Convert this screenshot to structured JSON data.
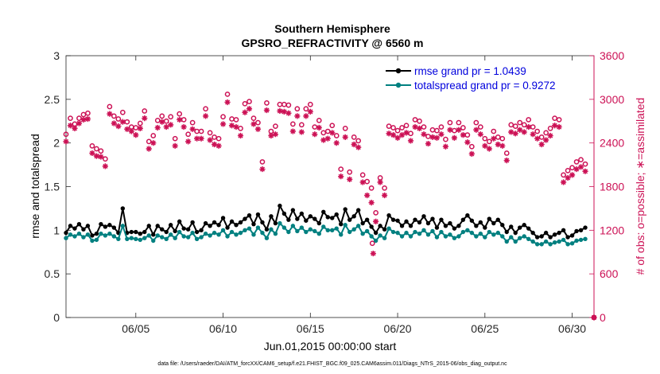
{
  "chart_data": {
    "type": "line",
    "title": [
      "Southern Hemisphere",
      "GPSRO_REFRACTIVITY @ 6560 m"
    ],
    "xlabel": "Jun.01,2015 00:00:00 start",
    "ylabel_left": "rmse and totalspread",
    "ylabel_right": "# of obs: o=possible; ∗=assimilated",
    "footnote": "data file: /Users/raeder/DAI/ATM_forcXX/CAM6_setup/f.e21.FHIST_BGC.f09_025.CAM6assim.011/Diags_NTrS_2015-06/obs_diag_output.nc",
    "xlim": [
      1,
      31.25
    ],
    "xticks": [
      5,
      10,
      15,
      20,
      25,
      30
    ],
    "xticklabels": [
      "06/05",
      "06/10",
      "06/15",
      "06/20",
      "06/25",
      "06/30"
    ],
    "ylim_left": [
      0,
      3
    ],
    "yticks_left": [
      "0",
      "0.5",
      "1",
      "1.5",
      "2",
      "2.5",
      "3"
    ],
    "ylim_right": [
      0,
      3600
    ],
    "yticks_right": [
      "0",
      "600",
      "1200",
      "1800",
      "2400",
      "3000",
      "3600"
    ],
    "colors": {
      "rmse": "#000000",
      "spread": "#008080",
      "obs": "#cc1155"
    },
    "legend": {
      "position": "top-right",
      "entries": [
        "rmse grand pr = 1.0439",
        "totalspread grand pr = 0.9272"
      ]
    },
    "series": [
      {
        "name": "rmse",
        "x": [
          1.0,
          1.25,
          1.5,
          1.75,
          2.0,
          2.25,
          2.5,
          2.75,
          3.0,
          3.25,
          3.5,
          3.75,
          4.0,
          4.25,
          4.5,
          4.75,
          5.0,
          5.25,
          5.5,
          5.75,
          6.0,
          6.25,
          6.5,
          6.75,
          7.0,
          7.25,
          7.5,
          7.75,
          8.0,
          8.25,
          8.5,
          8.75,
          9.0,
          9.25,
          9.5,
          9.75,
          10.0,
          10.25,
          10.5,
          10.75,
          11.0,
          11.25,
          11.5,
          11.75,
          12.0,
          12.25,
          12.5,
          12.75,
          13.0,
          13.25,
          13.5,
          13.75,
          14.0,
          14.25,
          14.5,
          14.75,
          15.0,
          15.25,
          15.5,
          15.75,
          16.0,
          16.25,
          16.5,
          16.75,
          17.0,
          17.25,
          17.5,
          17.75,
          18.0,
          18.25,
          18.5,
          18.75,
          19.0,
          19.25,
          19.5,
          19.75,
          20.0,
          20.25,
          20.5,
          20.75,
          21.0,
          21.25,
          21.5,
          21.75,
          22.0,
          22.25,
          22.5,
          22.75,
          23.0,
          23.25,
          23.5,
          23.75,
          24.0,
          24.25,
          24.5,
          24.75,
          25.0,
          25.25,
          25.5,
          25.75,
          26.0,
          26.25,
          26.5,
          26.75,
          27.0,
          27.25,
          27.5,
          27.75,
          28.0,
          28.25,
          28.5,
          28.75,
          29.0,
          29.25,
          29.5,
          29.75,
          30.0,
          30.25,
          30.5,
          30.75
        ],
        "values": [
          0.97,
          1.05,
          1.02,
          1.07,
          1.01,
          1.05,
          0.94,
          0.96,
          1.07,
          1.04,
          1.06,
          1.03,
          0.97,
          1.25,
          0.97,
          0.98,
          0.98,
          0.96,
          0.98,
          1.05,
          0.95,
          1.05,
          1.01,
          0.98,
          1.06,
          0.99,
          1.1,
          1.02,
          1.01,
          1.09,
          0.98,
          1.0,
          1.08,
          1.05,
          1.09,
          1.06,
          1.14,
          1.03,
          1.1,
          1.06,
          1.09,
          1.13,
          1.17,
          1.07,
          1.18,
          1.09,
          1.01,
          1.16,
          1.08,
          1.28,
          1.19,
          1.12,
          1.23,
          1.13,
          1.19,
          1.11,
          1.16,
          1.13,
          1.08,
          1.21,
          1.15,
          1.14,
          1.18,
          1.07,
          1.24,
          1.12,
          1.16,
          1.23,
          1.08,
          1.12,
          1.04,
          0.97,
          1.05,
          1.01,
          1.17,
          1.12,
          1.11,
          1.05,
          1.1,
          1.05,
          1.12,
          1.09,
          1.16,
          1.08,
          1.13,
          1.03,
          1.12,
          1.05,
          1.08,
          1.02,
          1.05,
          1.12,
          1.17,
          1.11,
          1.05,
          1.09,
          1.03,
          1.13,
          1.08,
          1.12,
          1.06,
          0.98,
          1.04,
          0.97,
          1.03,
          1.06,
          1.02,
          0.97,
          0.92,
          0.93,
          0.97,
          0.92,
          0.95,
          0.97,
          1.0,
          0.92,
          0.94,
          0.99,
          1.0,
          1.03
        ]
      },
      {
        "name": "totalspread",
        "x": [
          1.0,
          1.25,
          1.5,
          1.75,
          2.0,
          2.25,
          2.5,
          2.75,
          3.0,
          3.25,
          3.5,
          3.75,
          4.0,
          4.25,
          4.5,
          4.75,
          5.0,
          5.25,
          5.5,
          5.75,
          6.0,
          6.25,
          6.5,
          6.75,
          7.0,
          7.25,
          7.5,
          7.75,
          8.0,
          8.25,
          8.5,
          8.75,
          9.0,
          9.25,
          9.5,
          9.75,
          10.0,
          10.25,
          10.5,
          10.75,
          11.0,
          11.25,
          11.5,
          11.75,
          12.0,
          12.25,
          12.5,
          12.75,
          13.0,
          13.25,
          13.5,
          13.75,
          14.0,
          14.25,
          14.5,
          14.75,
          15.0,
          15.25,
          15.5,
          15.75,
          16.0,
          16.25,
          16.5,
          16.75,
          17.0,
          17.25,
          17.5,
          17.75,
          18.0,
          18.25,
          18.5,
          18.75,
          19.0,
          19.25,
          19.5,
          19.75,
          20.0,
          20.25,
          20.5,
          20.75,
          21.0,
          21.25,
          21.5,
          21.75,
          22.0,
          22.25,
          22.5,
          22.75,
          23.0,
          23.25,
          23.5,
          23.75,
          24.0,
          24.25,
          24.5,
          24.75,
          25.0,
          25.25,
          25.5,
          25.75,
          26.0,
          26.25,
          26.5,
          26.75,
          27.0,
          27.25,
          27.5,
          27.75,
          28.0,
          28.25,
          28.5,
          28.75,
          29.0,
          29.25,
          29.5,
          29.75,
          30.0,
          30.25,
          30.5,
          30.75
        ],
        "values": [
          0.91,
          0.95,
          0.93,
          0.96,
          0.92,
          0.95,
          0.88,
          0.89,
          0.96,
          0.94,
          0.96,
          0.93,
          0.9,
          1.05,
          0.9,
          0.91,
          0.9,
          0.89,
          0.91,
          0.94,
          0.88,
          0.94,
          0.92,
          0.9,
          0.95,
          0.91,
          0.98,
          0.93,
          0.92,
          0.97,
          0.9,
          0.92,
          0.96,
          0.94,
          0.97,
          0.95,
          1.0,
          0.93,
          0.98,
          0.95,
          0.97,
          1.0,
          1.02,
          0.95,
          1.03,
          0.97,
          0.91,
          1.01,
          0.96,
          1.08,
          1.03,
          0.98,
          1.05,
          0.99,
          1.03,
          0.98,
          1.01,
          0.99,
          0.96,
          1.04,
          1.0,
          1.0,
          1.02,
          0.95,
          1.06,
          0.98,
          1.01,
          1.05,
          0.96,
          0.99,
          0.93,
          0.88,
          0.94,
          0.91,
          1.02,
          0.98,
          0.97,
          0.93,
          0.97,
          0.93,
          0.98,
          0.96,
          1.0,
          0.95,
          0.99,
          0.92,
          0.98,
          0.93,
          0.95,
          0.91,
          0.93,
          0.98,
          1.0,
          0.97,
          0.93,
          0.96,
          0.92,
          0.98,
          0.95,
          0.97,
          0.93,
          0.87,
          0.92,
          0.87,
          0.91,
          0.93,
          0.9,
          0.87,
          0.84,
          0.84,
          0.87,
          0.84,
          0.86,
          0.87,
          0.89,
          0.84,
          0.85,
          0.88,
          0.89,
          0.9
        ]
      },
      {
        "name": "obs_possible",
        "axis": "right",
        "marker": "o",
        "x": [
          1.0,
          1.25,
          1.5,
          1.75,
          2.0,
          2.25,
          2.5,
          2.75,
          3.0,
          3.25,
          3.5,
          3.75,
          4.0,
          4.25,
          4.5,
          4.75,
          5.0,
          5.25,
          5.5,
          5.75,
          6.0,
          6.25,
          6.5,
          6.75,
          7.0,
          7.25,
          7.5,
          7.75,
          8.0,
          8.25,
          8.5,
          8.75,
          9.0,
          9.25,
          9.5,
          9.75,
          10.0,
          10.25,
          10.5,
          10.75,
          11.0,
          11.25,
          11.5,
          11.75,
          12.0,
          12.25,
          12.5,
          12.75,
          13.0,
          13.25,
          13.5,
          13.75,
          14.0,
          14.25,
          14.5,
          14.75,
          15.0,
          15.25,
          15.5,
          15.75,
          16.0,
          16.25,
          16.5,
          16.75,
          17.0,
          17.25,
          17.5,
          17.75,
          18.0,
          18.25,
          18.5,
          18.75,
          19.0,
          19.25,
          19.5,
          19.75,
          20.0,
          20.25,
          20.5,
          20.75,
          21.0,
          21.25,
          21.5,
          21.75,
          22.0,
          22.25,
          22.5,
          22.75,
          23.0,
          23.25,
          23.5,
          23.75,
          24.0,
          24.25,
          24.5,
          24.75,
          25.0,
          25.25,
          25.5,
          25.75,
          26.0,
          26.25,
          26.5,
          26.75,
          27.0,
          27.25,
          27.5,
          27.75,
          28.0,
          28.25,
          28.5,
          28.75,
          29.0,
          29.25,
          29.5,
          29.75,
          30.0,
          30.25,
          30.5,
          30.75
        ],
        "values": [
          2520,
          2740,
          2660,
          2740,
          2790,
          2810,
          2360,
          2320,
          2290,
          2180,
          2900,
          2770,
          2730,
          2820,
          2690,
          2620,
          2610,
          2670,
          2840,
          2420,
          2500,
          2710,
          2770,
          2700,
          2760,
          2460,
          2800,
          2720,
          2520,
          2680,
          2560,
          2560,
          2870,
          2540,
          2480,
          2460,
          2760,
          3070,
          2730,
          2720,
          2600,
          2940,
          2970,
          2740,
          2680,
          2140,
          2950,
          2560,
          2630,
          2930,
          2930,
          2920,
          2660,
          2870,
          2650,
          2870,
          2930,
          2620,
          2710,
          2540,
          2560,
          2640,
          2500,
          2040,
          2600,
          2000,
          2480,
          2430,
          1960,
          1870,
          1780,
          1440,
          1920,
          1780,
          2630,
          2610,
          2570,
          2610,
          2640,
          2530,
          2720,
          2700,
          2620,
          2490,
          2580,
          2570,
          2620,
          2450,
          2680,
          2570,
          2680,
          2610,
          2510,
          2350,
          2680,
          2620,
          2460,
          2420,
          2560,
          2480,
          2460,
          2260,
          2650,
          2630,
          2680,
          2650,
          2720,
          2620,
          2560,
          2480,
          2540,
          2600,
          2740,
          2720,
          1960,
          2020,
          2060,
          2140,
          2170,
          2110
        ]
      },
      {
        "name": "obs_assimilated",
        "axis": "right",
        "marker": "*",
        "x": [
          1.0,
          1.25,
          1.5,
          1.75,
          2.0,
          2.25,
          2.5,
          2.75,
          3.0,
          3.25,
          3.5,
          3.75,
          4.0,
          4.25,
          4.5,
          4.75,
          5.0,
          5.25,
          5.5,
          5.75,
          6.0,
          6.25,
          6.5,
          6.75,
          7.0,
          7.25,
          7.5,
          7.75,
          8.0,
          8.25,
          8.5,
          8.75,
          9.0,
          9.25,
          9.5,
          9.75,
          10.0,
          10.25,
          10.5,
          10.75,
          11.0,
          11.25,
          11.5,
          11.75,
          12.0,
          12.25,
          12.5,
          12.75,
          13.0,
          13.25,
          13.5,
          13.75,
          14.0,
          14.25,
          14.5,
          14.75,
          15.0,
          15.25,
          15.5,
          15.75,
          16.0,
          16.25,
          16.5,
          16.75,
          17.0,
          17.25,
          17.5,
          17.75,
          18.0,
          18.25,
          18.5,
          18.75,
          19.0,
          19.25,
          19.5,
          19.75,
          20.0,
          20.25,
          20.5,
          20.75,
          21.0,
          21.25,
          21.5,
          21.75,
          22.0,
          22.25,
          22.5,
          22.75,
          23.0,
          23.25,
          23.5,
          23.75,
          24.0,
          24.25,
          24.5,
          24.75,
          25.0,
          25.25,
          25.5,
          25.75,
          26.0,
          26.25,
          26.5,
          26.75,
          27.0,
          27.25,
          27.5,
          27.75,
          28.0,
          28.25,
          28.5,
          28.75,
          29.0,
          29.25,
          29.5,
          29.75,
          30.0,
          30.25,
          30.5,
          30.75
        ],
        "values": [
          2420,
          2640,
          2600,
          2670,
          2720,
          2730,
          2260,
          2220,
          2210,
          2080,
          2800,
          2670,
          2630,
          2690,
          2590,
          2560,
          2510,
          2600,
          2740,
          2320,
          2400,
          2610,
          2690,
          2620,
          2650,
          2360,
          2720,
          2620,
          2420,
          2590,
          2460,
          2460,
          2770,
          2440,
          2380,
          2360,
          2660,
          2960,
          2640,
          2620,
          2500,
          2820,
          2870,
          2660,
          2590,
          2040,
          2850,
          2500,
          2520,
          2840,
          2830,
          2810,
          2560,
          2770,
          2550,
          2770,
          2830,
          2520,
          2610,
          2440,
          2460,
          2540,
          2400,
          1940,
          2480,
          1900,
          2380,
          2340,
          1860,
          1680,
          1580,
          1320,
          1860,
          1680,
          2530,
          2510,
          2470,
          2510,
          2540,
          2430,
          2620,
          2600,
          2520,
          2390,
          2480,
          2470,
          2520,
          2350,
          2580,
          2470,
          2580,
          2510,
          2410,
          2250,
          2580,
          2520,
          2360,
          2320,
          2460,
          2380,
          2360,
          2160,
          2550,
          2530,
          2580,
          2550,
          2620,
          2520,
          2460,
          2380,
          2440,
          2500,
          2640,
          2620,
          1860,
          1920,
          1960,
          2040,
          2070,
          2010
        ]
      }
    ],
    "outlier_points": [
      {
        "series": "obs_possible",
        "x": 18.55,
        "value": 1020
      },
      {
        "series": "obs_assimilated",
        "x": 18.6,
        "value": 880
      },
      {
        "series": "obs_possible",
        "x": 31.25,
        "value": 0
      },
      {
        "series": "obs_assimilated",
        "x": 31.25,
        "value": 0
      }
    ]
  }
}
